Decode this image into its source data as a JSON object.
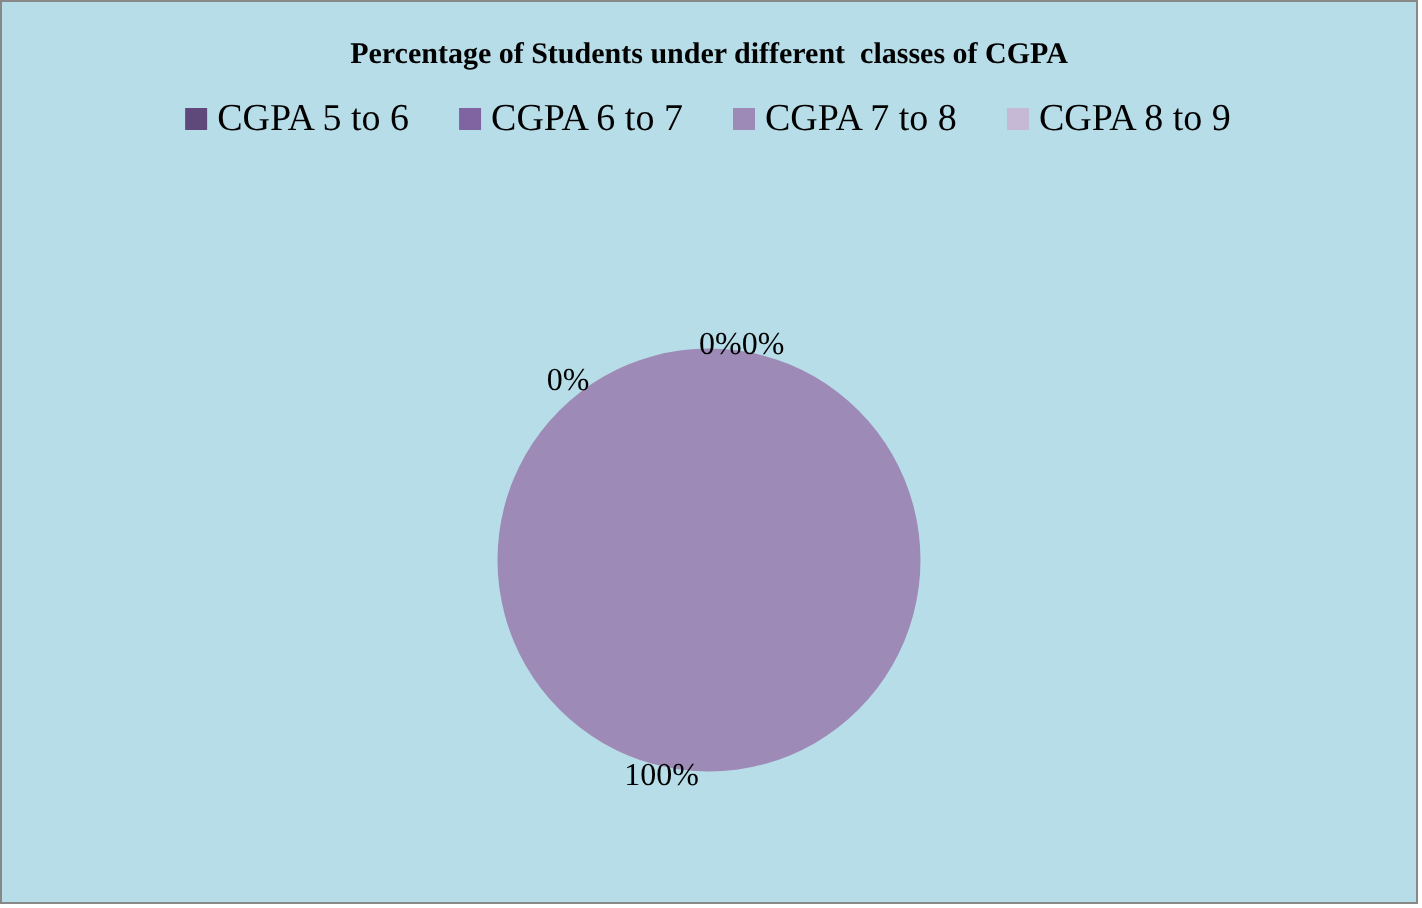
{
  "chart_data": {
    "type": "pie",
    "title": "Percentage of Students under different  classes of CGPA",
    "categories": [
      "CGPA 5 to 6",
      "CGPA 6 to 7",
      "CGPA 7 to 8",
      "CGPA 8 to 9"
    ],
    "values": [
      0,
      0,
      100,
      0
    ],
    "value_labels": [
      "0%",
      "0%",
      "100%",
      "0%"
    ],
    "colors": [
      "#5f497a",
      "#8064a2",
      "#9e8ab6",
      "#c6b9d6"
    ],
    "legend": "top"
  }
}
